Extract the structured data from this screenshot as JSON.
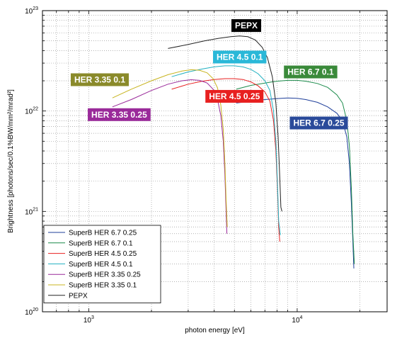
{
  "chart_data": {
    "type": "line",
    "xlabel": "photon energy [eV]",
    "ylabel": "Brightness [photons/sec/0.1%BW/mm²/mrad²]",
    "xscale": "log",
    "yscale": "log",
    "xlim": [
      600,
      27000
    ],
    "ylim": [
      1e+20,
      1e+23
    ],
    "grid": true,
    "legend_position": "bottom-left",
    "x_ticks": [
      {
        "value": 1000,
        "base": "10",
        "exp": "3"
      },
      {
        "value": 10000,
        "base": "10",
        "exp": "4"
      }
    ],
    "y_ticks": [
      {
        "value": 1e+20,
        "base": "10",
        "exp": "20"
      },
      {
        "value": 1e+21,
        "base": "10",
        "exp": "21"
      },
      {
        "value": 1e+22,
        "base": "10",
        "exp": "22"
      },
      {
        "value": 1e+23,
        "base": "10",
        "exp": "23"
      }
    ],
    "series": [
      {
        "name": "SuperB HER 6.7 0.25",
        "color": "#1f3f9a",
        "x": [
          5100,
          6000,
          7000,
          8000,
          9000,
          10000,
          11000,
          12500,
          14000,
          15500,
          16500,
          17300,
          17800,
          18200,
          18500,
          18700
        ],
        "y": [
          1.2e+22,
          1.25e+22,
          1.3e+22,
          1.33e+22,
          1.35e+22,
          1.34e+22,
          1.3e+22,
          1.22e+22,
          1.1e+22,
          9.5e+21,
          8e+21,
          5.5e+21,
          3e+21,
          1.2e+21,
          5e+20,
          2.7e+20
        ]
      },
      {
        "name": "SuperB HER 6.7 0.1",
        "color": "#1a8a4a",
        "x": [
          5100,
          6000,
          7000,
          8000,
          9000,
          10000,
          11000,
          12500,
          14000,
          15500,
          16500,
          17300,
          17800,
          18200,
          18500,
          18800
        ],
        "y": [
          1.65e+22,
          1.8e+22,
          1.9e+22,
          1.98e+22,
          2.02e+22,
          2.02e+22,
          1.98e+22,
          1.88e+22,
          1.72e+22,
          1.45e+22,
          1.2e+22,
          8e+21,
          4.5e+21,
          1.7e+21,
          6e+20,
          3e+20
        ]
      },
      {
        "name": "SuperB HER 4.5 0.25",
        "color": "#e82020",
        "x": [
          2500,
          3000,
          3500,
          4000,
          4500,
          5000,
          5500,
          6000,
          6500,
          7000,
          7400,
          7700,
          7900,
          8050,
          8150,
          8250
        ],
        "y": [
          1.65e+22,
          1.85e+22,
          1.98e+22,
          2.06e+22,
          2.1e+22,
          2.1e+22,
          2.06e+22,
          1.95e+22,
          1.78e+22,
          1.55e+22,
          1.25e+22,
          8e+21,
          4e+21,
          1.6e+21,
          7e+20,
          5e+20
        ]
      },
      {
        "name": "SuperB HER 4.5 0.1",
        "color": "#20b0c0",
        "x": [
          2500,
          3000,
          3500,
          4000,
          4500,
          5000,
          5500,
          6000,
          6500,
          7000,
          7400,
          7700,
          7900,
          8050,
          8150,
          8300
        ],
        "y": [
          2.2e+22,
          2.45e+22,
          2.62e+22,
          2.75e+22,
          2.82e+22,
          2.82e+22,
          2.75e+22,
          2.6e+22,
          2.35e+22,
          2e+22,
          1.6e+22,
          1e+22,
          5e+21,
          1.8e+21,
          8e+20,
          5.8e+20
        ]
      },
      {
        "name": "SuperB HER 3.35 0.25",
        "color": "#9a2a9a",
        "x": [
          1300,
          1600,
          2000,
          2400,
          2800,
          3100,
          3400,
          3700,
          3950,
          4150,
          4300,
          4420,
          4500,
          4560,
          4600
        ],
        "y": [
          1.1e+22,
          1.3e+22,
          1.6e+22,
          1.85e+22,
          2e+22,
          2.05e+22,
          2.02e+22,
          1.9e+22,
          1.65e+22,
          1.3e+22,
          9e+21,
          5e+21,
          2.3e+21,
          1e+21,
          6e+20
        ]
      },
      {
        "name": "SuperB HER 3.35 0.1",
        "color": "#c8b420",
        "x": [
          1300,
          1600,
          2000,
          2400,
          2800,
          3100,
          3400,
          3700,
          3950,
          4150,
          4300,
          4420,
          4500,
          4560,
          4620
        ],
        "y": [
          1.35e+22,
          1.65e+22,
          2e+22,
          2.3e+22,
          2.5e+22,
          2.58e+22,
          2.55e+22,
          2.4e+22,
          2.1e+22,
          1.7e+22,
          1.15e+22,
          6.5e+21,
          3e+21,
          1.3e+21,
          7e+20
        ]
      },
      {
        "name": "PEPX",
        "color": "#222222",
        "x": [
          2400,
          3000,
          3600,
          4200,
          4800,
          5300,
          5800,
          6300,
          6800,
          7200,
          7600,
          7900,
          8100,
          8250,
          8350,
          8450
        ],
        "y": [
          4.2e+22,
          4.6e+22,
          5e+22,
          5.3e+22,
          5.5e+22,
          5.6e+22,
          5.5e+22,
          5.1e+22,
          4.3e+22,
          3.4e+22,
          2.2e+22,
          1.2e+22,
          5.5e+21,
          2.2e+21,
          1.1e+21,
          1e+21
        ]
      }
    ],
    "annotations": [
      {
        "text": "PEPX",
        "x": 5700,
        "y": 7.1e+22,
        "bg": "#000000"
      },
      {
        "text": "HER 4.5 0.1",
        "x": 5300,
        "y": 3.45e+22,
        "bg": "#2ab8d8"
      },
      {
        "text": "HER 6.7 0.1",
        "x": 11600,
        "y": 2.45e+22,
        "bg": "#3a8a3a"
      },
      {
        "text": "HER 3.35 0.1",
        "x": 1130,
        "y": 2.05e+22,
        "bg": "#8a8a2a"
      },
      {
        "text": "HER 4.5 0.25",
        "x": 5000,
        "y": 1.4e+22,
        "bg": "#e82020"
      },
      {
        "text": "HER 3.35 0.25",
        "x": 1400,
        "y": 9.2e+21,
        "bg": "#9a2a9a"
      },
      {
        "text": "HER 6.7 0.25",
        "x": 12700,
        "y": 7.6e+21,
        "bg": "#2a4a9a"
      }
    ]
  }
}
